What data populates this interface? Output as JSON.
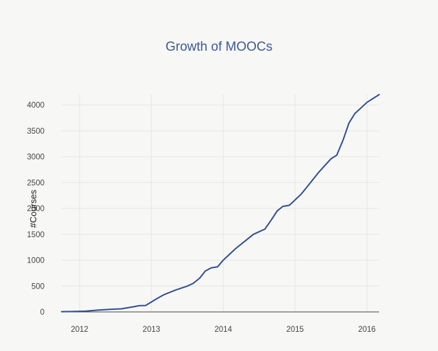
{
  "chart_data": {
    "type": "line",
    "title": "Growth of MOOCs",
    "xlabel": "",
    "ylabel": "#Courses",
    "x_ticks": [
      "2012",
      "2013",
      "2014",
      "2015",
      "2016"
    ],
    "y_ticks": [
      "0",
      "500",
      "1000",
      "1500",
      "2000",
      "2500",
      "3000",
      "3500",
      "4000"
    ],
    "ylim": [
      0,
      4200
    ],
    "xlim": [
      2011.75,
      2016.17
    ],
    "grid": true,
    "line_color": "#2f4d8f",
    "series": [
      {
        "x": [
          2011.75,
          2011.92,
          2012.08,
          2012.25,
          2012.42,
          2012.58,
          2012.75,
          2012.83,
          2012.92,
          2013.08,
          2013.17,
          2013.33,
          2013.5,
          2013.58,
          2013.67,
          2013.75,
          2013.83,
          2013.92,
          2014.0,
          2014.17,
          2014.42,
          2014.58,
          2014.67,
          2014.75,
          2014.83,
          2014.92,
          2015.08,
          2015.17,
          2015.33,
          2015.5,
          2015.58,
          2015.67,
          2015.75,
          2015.83,
          2016.0,
          2016.17
        ],
        "values": [
          5,
          8,
          15,
          35,
          50,
          60,
          100,
          120,
          125,
          260,
          330,
          420,
          500,
          550,
          650,
          790,
          850,
          870,
          1000,
          1220,
          1500,
          1600,
          1780,
          1950,
          2040,
          2060,
          2270,
          2420,
          2700,
          2960,
          3030,
          3330,
          3650,
          3830,
          4050,
          4200
        ]
      }
    ]
  }
}
